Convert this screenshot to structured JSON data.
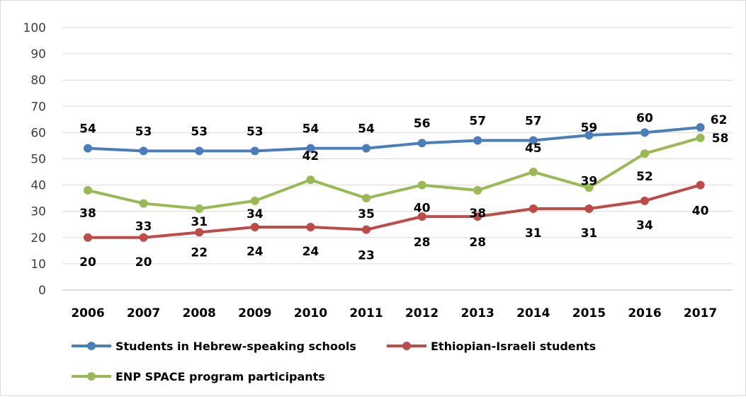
{
  "chart_data": {
    "type": "line",
    "title": "",
    "xlabel": "",
    "ylabel": "",
    "ylim": [
      0,
      100
    ],
    "yticks": [
      0,
      10,
      20,
      30,
      40,
      50,
      60,
      70,
      80,
      90,
      100
    ],
    "grid": true,
    "legend_position": "bottom",
    "categories": [
      "2006",
      "2007",
      "2008",
      "2009",
      "2010",
      "2011",
      "2012",
      "2013",
      "2014",
      "2015",
      "2016",
      "2017"
    ],
    "series": [
      {
        "name": "Students in Hebrew-speaking schools",
        "color": "#4a7ebb",
        "values": [
          54,
          53,
          53,
          53,
          54,
          54,
          56,
          57,
          57,
          59,
          60,
          62
        ],
        "label_position": "above"
      },
      {
        "name": "Ethiopian-Israeli students",
        "color": "#be4b48",
        "values": [
          20,
          20,
          22,
          24,
          24,
          23,
          28,
          28,
          31,
          31,
          34,
          40
        ],
        "label_position": "below"
      },
      {
        "name": "ENP SPACE program participants",
        "color": "#98b954",
        "values": [
          38,
          33,
          31,
          34,
          42,
          35,
          40,
          38,
          45,
          39,
          52,
          58
        ],
        "label_position": "mixed"
      }
    ]
  }
}
